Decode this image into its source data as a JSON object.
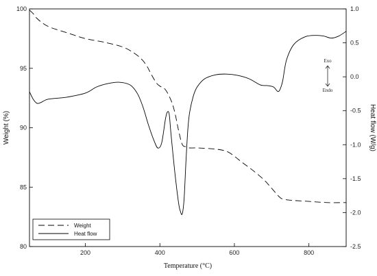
{
  "chart_data": {
    "type": "line",
    "xlabel": "Temperature (°C)",
    "ylabel_left": "Weight (%)",
    "ylabel_right": "Heat flow (W/g)",
    "xlim": [
      50,
      900
    ],
    "ylim_left": [
      80,
      100
    ],
    "ylim_right": [
      -2.5,
      1.0
    ],
    "x_ticks": [
      200,
      400,
      600,
      800
    ],
    "y_ticks_left": [
      80,
      85,
      90,
      95,
      100
    ],
    "y_ticks_right": [
      -2.5,
      -2.0,
      -1.5,
      -1.0,
      -0.5,
      0.0,
      0.5,
      1.0
    ],
    "grid": false,
    "legend_position": "bottom-left",
    "annotations": {
      "exo": "Exo",
      "endo": "Endo"
    },
    "series": [
      {
        "name": "Weight",
        "axis": "left",
        "style": "dashed",
        "x": [
          50,
          60,
          70,
          90,
          110,
          150,
          200,
          250,
          300,
          330,
          350,
          365,
          375,
          390,
          400,
          415,
          430,
          440,
          450,
          460,
          470,
          480,
          500,
          550,
          580,
          600,
          620,
          650,
          680,
          700,
          720,
          730,
          750,
          800,
          850,
          900
        ],
        "y": [
          99.9,
          99.6,
          99.2,
          98.7,
          98.4,
          98.0,
          97.5,
          97.2,
          96.8,
          96.3,
          95.8,
          95.2,
          94.6,
          93.8,
          93.5,
          93.2,
          92.3,
          91.3,
          89.8,
          88.6,
          88.4,
          88.3,
          88.3,
          88.2,
          88.0,
          87.6,
          87.1,
          86.4,
          85.6,
          84.9,
          84.2,
          84.0,
          83.9,
          83.8,
          83.7,
          83.7
        ]
      },
      {
        "name": "Heat flow",
        "axis": "right",
        "style": "solid",
        "x": [
          50,
          60,
          70,
          80,
          100,
          150,
          200,
          230,
          260,
          290,
          320,
          340,
          355,
          370,
          385,
          395,
          405,
          415,
          420,
          425,
          430,
          440,
          450,
          455,
          460,
          465,
          470,
          475,
          480,
          490,
          500,
          520,
          550,
          580,
          610,
          640,
          670,
          690,
          705,
          715,
          720,
          725,
          730,
          740,
          760,
          790,
          820,
          840,
          860,
          880,
          900
        ],
        "y": [
          -0.22,
          -0.33,
          -0.39,
          -0.38,
          -0.33,
          -0.3,
          -0.24,
          -0.15,
          -0.1,
          -0.08,
          -0.12,
          -0.25,
          -0.45,
          -0.72,
          -0.95,
          -1.05,
          -0.97,
          -0.62,
          -0.52,
          -0.55,
          -0.85,
          -1.4,
          -1.85,
          -1.98,
          -2.02,
          -1.8,
          -1.25,
          -0.78,
          -0.52,
          -0.28,
          -0.15,
          -0.03,
          0.03,
          0.04,
          0.02,
          -0.03,
          -0.12,
          -0.13,
          -0.15,
          -0.21,
          -0.21,
          -0.15,
          -0.05,
          0.25,
          0.48,
          0.59,
          0.61,
          0.6,
          0.57,
          0.6,
          0.67
        ]
      }
    ]
  }
}
